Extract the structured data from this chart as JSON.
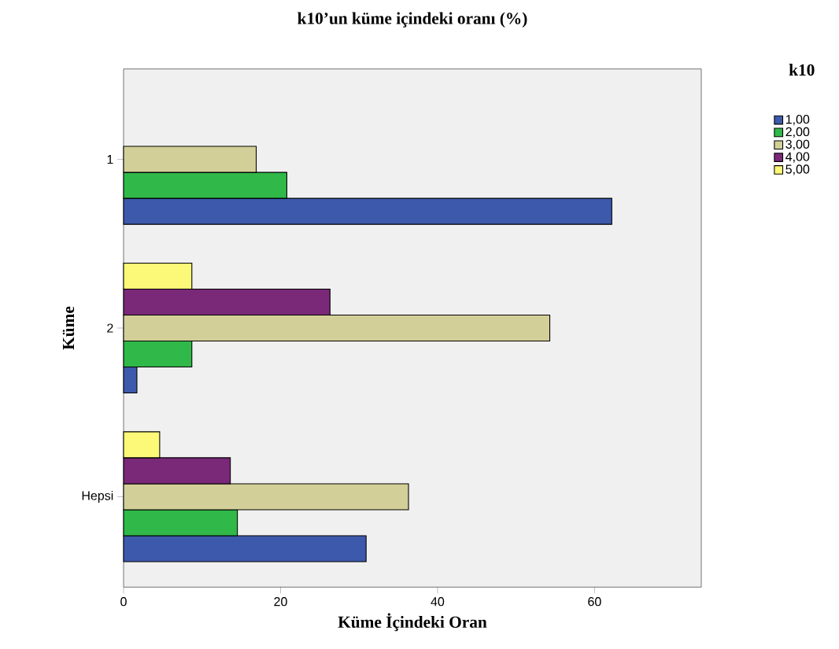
{
  "chart_data": {
    "type": "bar",
    "orientation": "horizontal",
    "title": "k10’un küme içindeki oranı (%)",
    "xlabel": "Küme İçindeki Oran",
    "ylabel": "Küme",
    "legend_title": "k10",
    "legend": "top right",
    "categories": [
      "1",
      "2",
      "Hepsi"
    ],
    "series": [
      {
        "name": "1,00",
        "color": "#3d59ab",
        "values": [
          62.2,
          1.7,
          30.9
        ]
      },
      {
        "name": "2,00",
        "color": "#30b849",
        "values": [
          20.8,
          8.7,
          14.5
        ]
      },
      {
        "name": "3,00",
        "color": "#d3cf99",
        "values": [
          16.9,
          54.3,
          36.3
        ]
      },
      {
        "name": "4,00",
        "color": "#7a2878",
        "values": [
          null,
          26.3,
          13.6
        ]
      },
      {
        "name": "5,00",
        "color": "#fcf878",
        "values": [
          null,
          8.7,
          4.6
        ]
      }
    ],
    "xlim": [
      0,
      73.6
    ],
    "xticks": [
      0,
      20,
      40,
      60
    ]
  }
}
